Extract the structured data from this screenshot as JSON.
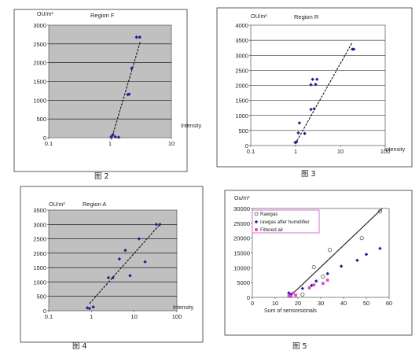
{
  "captions": {
    "fig2": "图 2",
    "fig3": "图 3",
    "fig4": "图 4",
    "fig5": "图 5"
  },
  "chart_data": [
    {
      "id": "fig2",
      "type": "scatter",
      "title": "Region F",
      "ylabel": "OU/m³",
      "xlabel": "Intensity",
      "x_scale": "log",
      "xlim": [
        0.1,
        10
      ],
      "ylim": [
        0,
        3000
      ],
      "x_ticks": [
        "0.1",
        "1",
        "10"
      ],
      "y_ticks": [
        0,
        500,
        1000,
        1500,
        2000,
        2500,
        3000
      ],
      "grid": "horizontal",
      "background": "#c0c0c0",
      "marker_color": "#1f1f8f",
      "points": [
        [
          1.05,
          30
        ],
        [
          1.12,
          80
        ],
        [
          1.22,
          20
        ],
        [
          1.38,
          10
        ],
        [
          1.95,
          1150
        ],
        [
          2.05,
          1160
        ],
        [
          2.25,
          1850
        ],
        [
          2.7,
          2680
        ],
        [
          3.05,
          2680
        ]
      ],
      "trend": [
        [
          1.05,
          -50
        ],
        [
          3.1,
          2550
        ]
      ]
    },
    {
      "id": "fig3",
      "type": "scatter",
      "title": "Region R",
      "ylabel": "OU/m³",
      "xlabel": "Intensity",
      "x_scale": "log",
      "xlim": [
        0.1,
        100
      ],
      "ylim": [
        0,
        4000
      ],
      "x_ticks": [
        "0.1",
        "1",
        "10",
        "100"
      ],
      "y_ticks": [
        0,
        500,
        1000,
        1500,
        2000,
        2500,
        3000,
        3500,
        4000
      ],
      "grid": "horizontal",
      "background": "#ffffff",
      "marker_color": "#1f1f8f",
      "points": [
        [
          0.98,
          100
        ],
        [
          1.05,
          120
        ],
        [
          1.15,
          420
        ],
        [
          1.22,
          750
        ],
        [
          1.6,
          400
        ],
        [
          2.2,
          1200
        ],
        [
          2.6,
          1220
        ],
        [
          2.4,
          2200
        ],
        [
          3.0,
          2200
        ],
        [
          2.2,
          2020
        ],
        [
          2.8,
          2030
        ],
        [
          18.5,
          3200
        ],
        [
          20.0,
          3200
        ]
      ],
      "trend": [
        [
          0.98,
          50
        ],
        [
          18.0,
          3400
        ]
      ]
    },
    {
      "id": "fig4",
      "type": "scatter",
      "title": "Region A",
      "ylabel": "OU/m³",
      "xlabel": "Intensity",
      "x_scale": "log",
      "xlim": [
        0.1,
        100
      ],
      "ylim": [
        0,
        3500
      ],
      "x_ticks": [
        "0.1",
        "1",
        "10",
        "100"
      ],
      "y_ticks": [
        0,
        500,
        1000,
        1500,
        2000,
        2500,
        3000,
        3500
      ],
      "grid": "horizontal",
      "background": "#c0c0c0",
      "marker_color": "#1f1f8f",
      "points": [
        [
          0.8,
          100
        ],
        [
          0.9,
          80
        ],
        [
          1.1,
          130
        ],
        [
          2.5,
          1150
        ],
        [
          3.2,
          1150
        ],
        [
          4.5,
          1800
        ],
        [
          6.2,
          2100
        ],
        [
          8.0,
          1220
        ],
        [
          13.0,
          2500
        ],
        [
          18.0,
          1700
        ],
        [
          33.0,
          3000
        ],
        [
          40.0,
          3000
        ]
      ],
      "trend": [
        [
          0.9,
          250
        ],
        [
          40.0,
          3000
        ]
      ]
    },
    {
      "id": "fig5",
      "type": "scatter",
      "ylabel": "Ou/m³",
      "xlabel": "Sum of sensorsionals",
      "x_scale": "linear",
      "xlim": [
        0,
        60
      ],
      "ylim": [
        0,
        30000
      ],
      "x_ticks": [
        0,
        10,
        20,
        30,
        40,
        50,
        60
      ],
      "y_ticks": [
        0,
        5000,
        10000,
        15000,
        20000,
        25000,
        30000
      ],
      "grid": "none",
      "background": "#ffffff",
      "legend_position": "top-left",
      "series": [
        {
          "name": "Rawgas",
          "marker": "circle-open",
          "color": "#555555",
          "points": [
            [
              22,
              1000
            ],
            [
              27,
              10200
            ],
            [
              31,
              7000
            ],
            [
              34,
              16000
            ],
            [
              48,
              20000
            ],
            [
              56,
              29000
            ]
          ]
        },
        {
          "name": "rawgas after humidifier",
          "marker": "diamond",
          "color": "#1f1f8f",
          "points": [
            [
              16,
              1500
            ],
            [
              17,
              1000
            ],
            [
              22,
              3000
            ],
            [
              26,
              4000
            ],
            [
              28,
              5500
            ],
            [
              33,
              8000
            ],
            [
              39,
              10500
            ],
            [
              46,
              12500
            ],
            [
              50,
              14500
            ],
            [
              56,
              16500
            ]
          ]
        },
        {
          "name": "Filtered air",
          "marker": "square",
          "color": "#e040d0",
          "points": [
            [
              16,
              500
            ],
            [
              17,
              300
            ],
            [
              18,
              1500
            ],
            [
              19,
              700
            ],
            [
              25,
              3200
            ],
            [
              27,
              4200
            ],
            [
              31,
              4700
            ],
            [
              33,
              5800
            ]
          ]
        }
      ],
      "trend": [
        [
          16,
          0
        ],
        [
          57,
          30000
        ]
      ]
    }
  ]
}
